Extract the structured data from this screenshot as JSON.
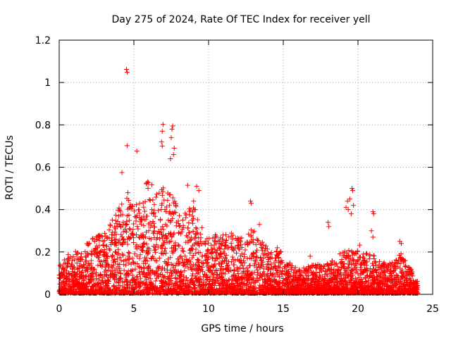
{
  "chart_data": {
    "type": "scatter",
    "title": "Day 275 of 2024, Rate Of TEC Index for receiver yell",
    "xlabel": "GPS time / hours",
    "ylabel": "ROTI / TECUs",
    "xlim": [
      0,
      25
    ],
    "ylim": [
      0,
      1.2
    ],
    "xticks": [
      0,
      5,
      10,
      15,
      20,
      25
    ],
    "xtick_labels": [
      "0",
      "5",
      "10",
      "15",
      "20",
      "25"
    ],
    "yticks": [
      0,
      0.2,
      0.4,
      0.6,
      0.8,
      1.0,
      1.2
    ],
    "ytick_labels": [
      "0",
      "0.2",
      "0.4",
      "0.6",
      "0.8",
      "1",
      "1.2"
    ],
    "grid": true,
    "marker": "+",
    "color": "#ff0000",
    "envelope": {
      "x": [
        0,
        0.5,
        1,
        1.5,
        2,
        2.5,
        3,
        3.5,
        4,
        4.5,
        5,
        5.5,
        6,
        6.5,
        7,
        7.5,
        8,
        8.5,
        9,
        9.5,
        10,
        10.5,
        11,
        11.5,
        12,
        12.5,
        13,
        13.5,
        14,
        14.5,
        15,
        15.5,
        16,
        16.5,
        17,
        17.5,
        18,
        18.5,
        19,
        19.5,
        20,
        20.5,
        21,
        21.5,
        22,
        22.5,
        23,
        23.5,
        24
      ],
      "y": [
        0.15,
        0.19,
        0.2,
        0.2,
        0.26,
        0.28,
        0.28,
        0.34,
        0.42,
        0.45,
        0.42,
        0.45,
        0.55,
        0.48,
        0.5,
        0.48,
        0.4,
        0.4,
        0.45,
        0.32,
        0.26,
        0.28,
        0.28,
        0.3,
        0.28,
        0.3,
        0.3,
        0.25,
        0.22,
        0.2,
        0.2,
        0.14,
        0.12,
        0.12,
        0.14,
        0.14,
        0.14,
        0.18,
        0.2,
        0.22,
        0.24,
        0.2,
        0.18,
        0.16,
        0.14,
        0.16,
        0.2,
        0.12,
        0.06
      ]
    },
    "notable_points": [
      {
        "x": 4.5,
        "y": 1.062
      },
      {
        "x": 4.55,
        "y": 1.048
      },
      {
        "x": 4.55,
        "y": 0.702
      },
      {
        "x": 5.2,
        "y": 0.676
      },
      {
        "x": 6.95,
        "y": 0.802
      },
      {
        "x": 6.9,
        "y": 0.77
      },
      {
        "x": 6.85,
        "y": 0.72
      },
      {
        "x": 6.9,
        "y": 0.7
      },
      {
        "x": 7.6,
        "y": 0.795
      },
      {
        "x": 7.55,
        "y": 0.78
      },
      {
        "x": 7.5,
        "y": 0.74
      },
      {
        "x": 7.7,
        "y": 0.69
      },
      {
        "x": 7.65,
        "y": 0.66
      },
      {
        "x": 7.45,
        "y": 0.64
      },
      {
        "x": 4.2,
        "y": 0.575
      },
      {
        "x": 4.6,
        "y": 0.48
      },
      {
        "x": 8.6,
        "y": 0.515
      },
      {
        "x": 9.2,
        "y": 0.51
      },
      {
        "x": 9.35,
        "y": 0.49
      },
      {
        "x": 12.8,
        "y": 0.44
      },
      {
        "x": 12.85,
        "y": 0.43
      },
      {
        "x": 13.4,
        "y": 0.33
      },
      {
        "x": 18.0,
        "y": 0.34
      },
      {
        "x": 18.05,
        "y": 0.32
      },
      {
        "x": 19.6,
        "y": 0.5
      },
      {
        "x": 19.65,
        "y": 0.49
      },
      {
        "x": 19.45,
        "y": 0.45
      },
      {
        "x": 19.3,
        "y": 0.44
      },
      {
        "x": 19.7,
        "y": 0.42
      },
      {
        "x": 19.2,
        "y": 0.41
      },
      {
        "x": 19.35,
        "y": 0.4
      },
      {
        "x": 19.55,
        "y": 0.38
      },
      {
        "x": 21.0,
        "y": 0.39
      },
      {
        "x": 21.05,
        "y": 0.38
      },
      {
        "x": 20.9,
        "y": 0.3
      },
      {
        "x": 21.0,
        "y": 0.27
      },
      {
        "x": 22.8,
        "y": 0.25
      },
      {
        "x": 22.9,
        "y": 0.24
      },
      {
        "x": 16.8,
        "y": 0.18
      },
      {
        "x": 14.6,
        "y": 0.22
      },
      {
        "x": 12.0,
        "y": 0.26
      },
      {
        "x": 10.9,
        "y": 0.24
      }
    ],
    "synthetic_point_count": 4200,
    "seed": 275
  }
}
